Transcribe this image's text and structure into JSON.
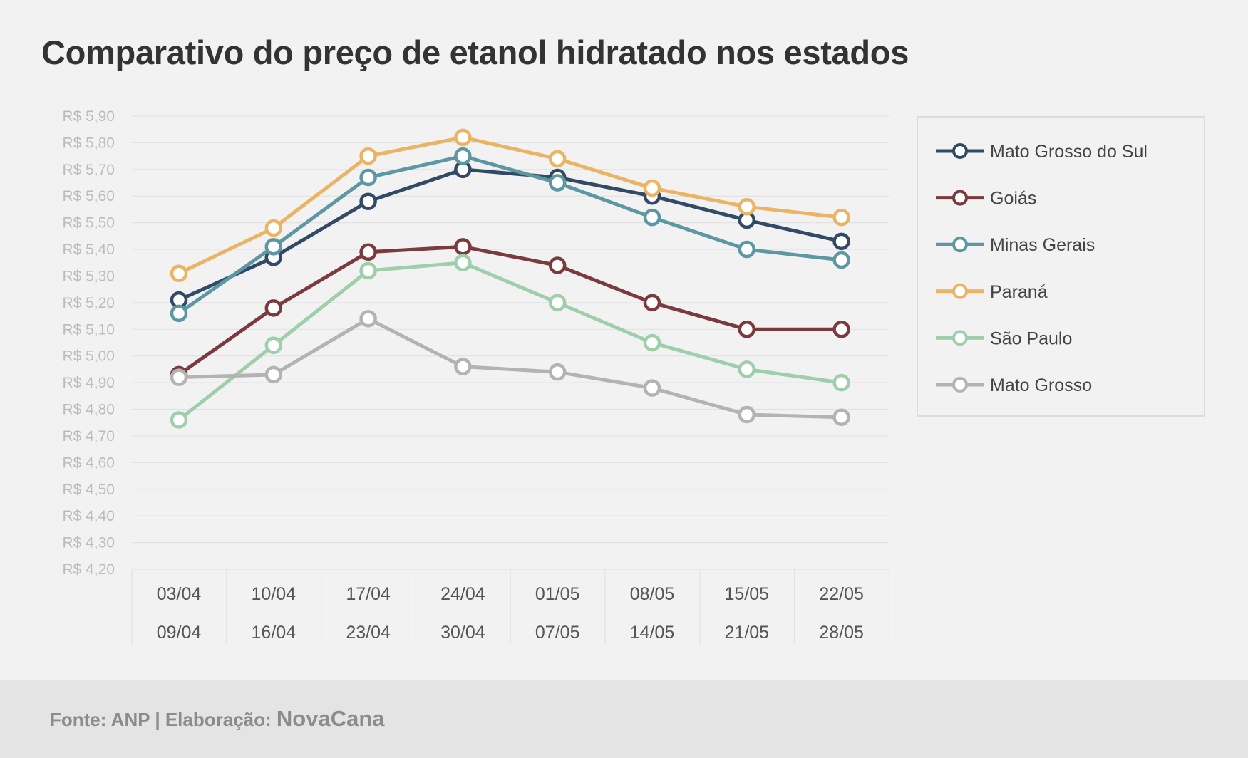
{
  "title": "Comparativo do preço de etanol hidratado nos estados",
  "footer": {
    "source": "Fonte: ANP | Elaboração: ",
    "brand": "NovaCana"
  },
  "chart_data": {
    "type": "line",
    "title": "Comparativo do preço de etanol hidratado nos estados",
    "xlabel": "",
    "ylabel": "",
    "categories": [
      [
        "03/04",
        "09/04"
      ],
      [
        "10/04",
        "16/04"
      ],
      [
        "17/04",
        "23/04"
      ],
      [
        "24/04",
        "30/04"
      ],
      [
        "01/05",
        "07/05"
      ],
      [
        "08/05",
        "14/05"
      ],
      [
        "15/05",
        "21/05"
      ],
      [
        "22/05",
        "28/05"
      ]
    ],
    "ylim": [
      4.2,
      5.9
    ],
    "yticks": [
      "R$ 5,90",
      "R$ 5,80",
      "R$ 5,70",
      "R$ 5,60",
      "R$ 5,50",
      "R$ 5,40",
      "R$ 5,30",
      "R$ 5,20",
      "R$ 5,10",
      "R$ 5,00",
      "R$ 4,90",
      "R$ 4,80",
      "R$ 4,70",
      "R$ 4,60",
      "R$ 4,50",
      "R$ 4,40",
      "R$ 4,30",
      "R$ 4,20"
    ],
    "grid": true,
    "legend_position": "right",
    "series": [
      {
        "name": "Mato Grosso do Sul",
        "color": "#324a66",
        "values": [
          5.21,
          5.37,
          5.58,
          5.7,
          5.67,
          5.6,
          5.51,
          5.43
        ]
      },
      {
        "name": "Goiás",
        "color": "#7b3a3d",
        "values": [
          4.93,
          5.18,
          5.39,
          5.41,
          5.34,
          5.2,
          5.1,
          5.1
        ]
      },
      {
        "name": "Minas Gerais",
        "color": "#5e97a4",
        "values": [
          5.16,
          5.41,
          5.67,
          5.75,
          5.65,
          5.52,
          5.4,
          5.36
        ]
      },
      {
        "name": "Paraná",
        "color": "#ebb464",
        "values": [
          5.31,
          5.48,
          5.75,
          5.82,
          5.74,
          5.63,
          5.56,
          5.52
        ]
      },
      {
        "name": "São Paulo",
        "color": "#9fceaa",
        "values": [
          4.76,
          5.04,
          5.32,
          5.35,
          5.2,
          5.05,
          4.95,
          4.9
        ]
      },
      {
        "name": "Mato Grosso",
        "color": "#b3b3b3",
        "values": [
          4.92,
          4.93,
          5.14,
          4.96,
          4.94,
          4.88,
          4.78,
          4.77
        ]
      }
    ]
  }
}
